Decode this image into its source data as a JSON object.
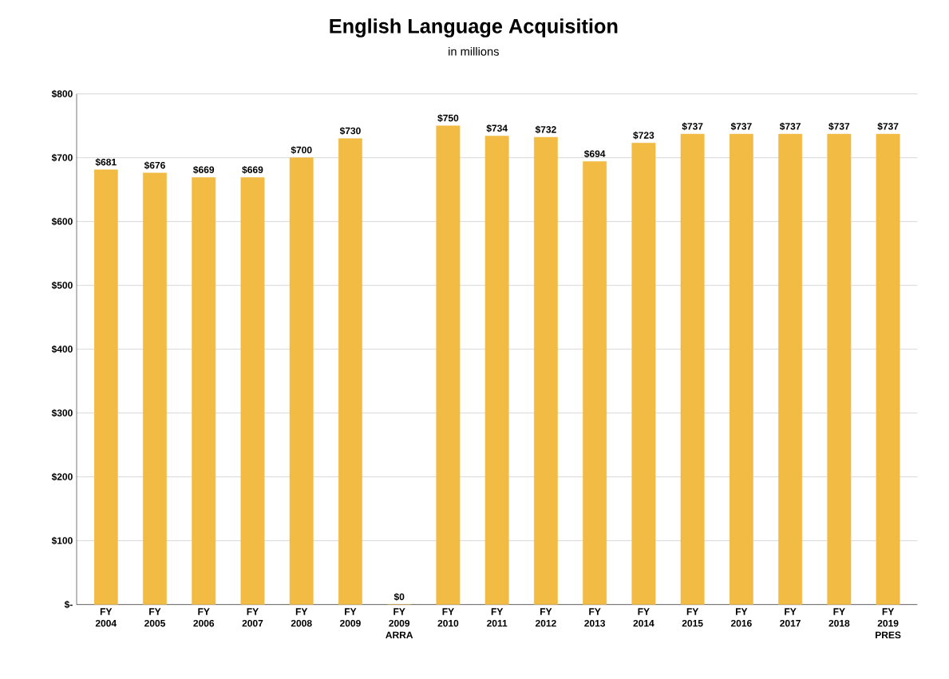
{
  "chart_data": {
    "type": "bar",
    "title": "English Language Acquisition",
    "subtitle": "in millions",
    "categories": [
      "FY 2004",
      "FY 2005",
      "FY 2006",
      "FY 2007",
      "FY 2008",
      "FY 2009",
      "FY 2009 ARRA",
      "FY 2010",
      "FY 2011",
      "FY 2012",
      "FY 2013",
      "FY 2014",
      "FY 2015",
      "FY 2016",
      "FY 2017",
      "FY 2018",
      "FY 2019 PRES"
    ],
    "values": [
      681,
      676,
      669,
      669,
      700,
      730,
      0,
      750,
      734,
      732,
      694,
      723,
      737,
      737,
      737,
      737,
      737
    ],
    "value_labels": [
      "$681",
      "$676",
      "$669",
      "$669",
      "$700",
      "$730",
      "$0",
      "$750",
      "$734",
      "$732",
      "$694",
      "$723",
      "$737",
      "$737",
      "$737",
      "$737",
      "$737"
    ],
    "color": "#f2bb44",
    "ylim": [
      0,
      800
    ],
    "yticks": [
      {
        "value": 0,
        "label": "$-"
      },
      {
        "value": 100,
        "label": "$100"
      },
      {
        "value": 200,
        "label": "$200"
      },
      {
        "value": 300,
        "label": "$300"
      },
      {
        "value": 400,
        "label": "$400"
      },
      {
        "value": 500,
        "label": "$500"
      },
      {
        "value": 600,
        "label": "$600"
      },
      {
        "value": 700,
        "label": "$700"
      },
      {
        "value": 800,
        "label": "$800"
      }
    ],
    "grid": "y"
  }
}
